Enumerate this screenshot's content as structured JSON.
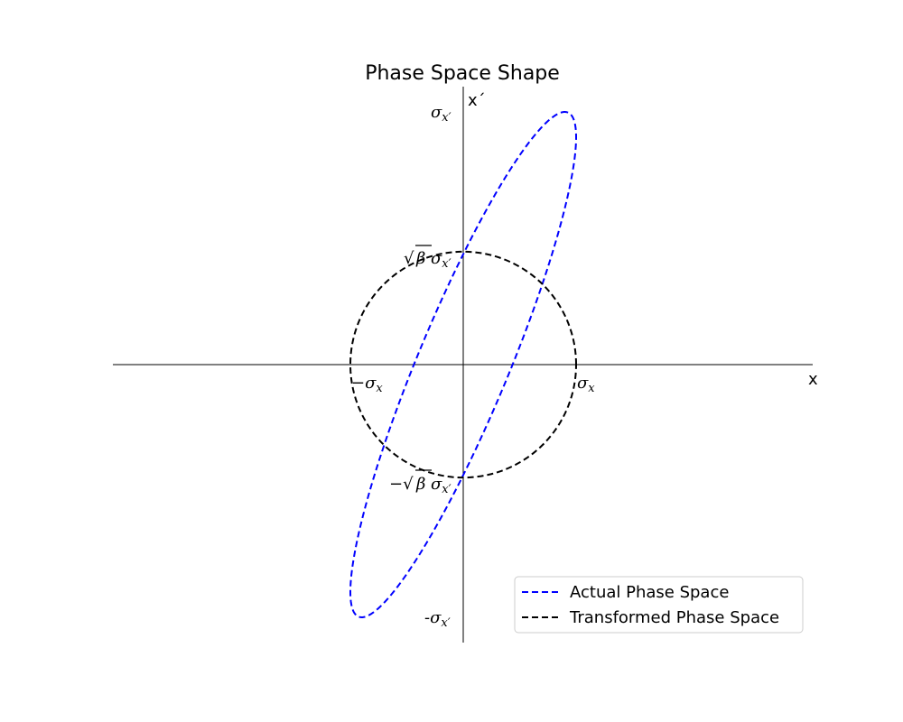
{
  "chart_data": {
    "type": "line",
    "title": "Phase Space Shape",
    "xlabel": "x",
    "ylabel": "x´",
    "xlim": [
      -1.55,
      3.1
    ],
    "ylim": [
      -1.1,
      1.1
    ],
    "axes_style": "spines through origin",
    "grid": false,
    "legend_placement": "lower-right",
    "x_ticks": [
      {
        "value": -1,
        "label": "−σ_x"
      },
      {
        "value": 1,
        "label": "σ_x"
      }
    ],
    "y_ticks": [
      {
        "value": 1,
        "label": "σ_x′"
      },
      {
        "value": 0.447,
        "label": "√β σ_x′"
      },
      {
        "value": -0.447,
        "label": "−√β σ_x′"
      },
      {
        "value": -1,
        "label": "-σ_x′"
      }
    ],
    "series": [
      {
        "name": "Actual Phase Space",
        "color": "#0000ff",
        "linestyle": "dashed",
        "shape": "tilted ellipse",
        "semi_major_angle_deg": 72,
        "x_extent": [
          -1,
          1
        ],
        "y_extent": [
          -1,
          1
        ]
      },
      {
        "name": "Transformed Phase Space",
        "color": "#000000",
        "linestyle": "dashed",
        "shape": "ellipse",
        "x_extent": [
          -1,
          1
        ],
        "y_extent": [
          -0.447,
          0.447
        ]
      }
    ]
  }
}
